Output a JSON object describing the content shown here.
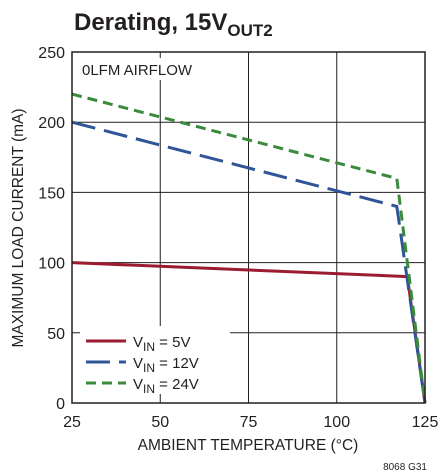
{
  "chart_data": {
    "type": "line",
    "title": {
      "main": "Derating, 15V",
      "sub": "OUT2"
    },
    "annotation": "0LFM AIRFLOW",
    "xlabel": "AMBIENT TEMPERATURE (°C)",
    "ylabel": "MAXIMUM LOAD CURRENT (mA)",
    "xlim": [
      25,
      125
    ],
    "ylim": [
      0,
      250
    ],
    "xticks": [
      25,
      50,
      75,
      100,
      125
    ],
    "yticks": [
      0,
      50,
      100,
      150,
      200,
      250
    ],
    "grid": true,
    "legend_position": "bottom-left",
    "figure_code": "8068 G31",
    "series": [
      {
        "name": "VIN = 5V",
        "label_main": "V",
        "label_sub": "IN",
        "label_rest": " = 5V",
        "color": "#9b1b30",
        "style": "solid",
        "x": [
          25,
          120,
          125
        ],
        "y": [
          100,
          90,
          0
        ]
      },
      {
        "name": "VIN = 12V",
        "label_main": "V",
        "label_sub": "IN",
        "label_rest": " = 12V",
        "color": "#2f5597",
        "style": "long-dash",
        "x": [
          25,
          117,
          125
        ],
        "y": [
          200,
          140,
          0
        ]
      },
      {
        "name": "VIN = 24V",
        "label_main": "V",
        "label_sub": "IN",
        "label_rest": " = 24V",
        "color": "#3a8a3c",
        "style": "short-dash",
        "x": [
          25,
          117,
          125
        ],
        "y": [
          220,
          160,
          0
        ]
      }
    ]
  }
}
